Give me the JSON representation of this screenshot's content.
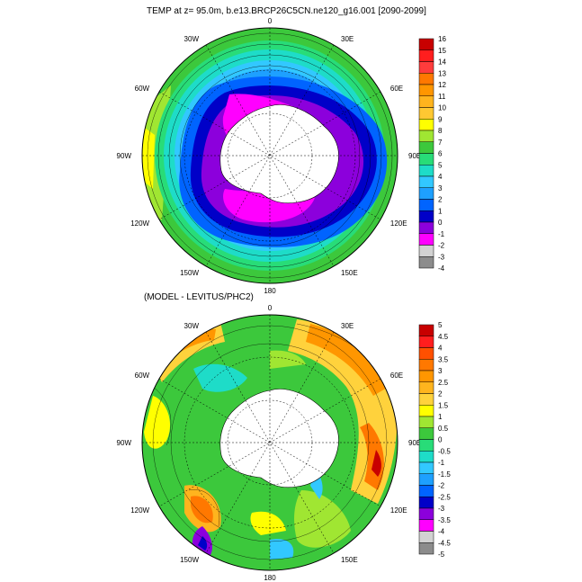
{
  "panels": [
    {
      "title": "TEMP at z=  95.0m, b.e13.BRCP26C5CN.ne120_g16.001 [2090-2099]",
      "lon_labels": [
        "0",
        "30E",
        "60E",
        "90E",
        "120E",
        "150E",
        "180",
        "150W",
        "120W",
        "90W",
        "60W",
        "30W"
      ],
      "colorbar": {
        "labels": [
          "16",
          "15",
          "14",
          "13",
          "12",
          "11",
          "10",
          "9",
          "8",
          "7",
          "6",
          "5",
          "4",
          "3",
          "2",
          "1",
          "0",
          "-1",
          "-2",
          "-3",
          "-4"
        ],
        "colors": [
          "#c80000",
          "#ff1e1e",
          "#ff3c3c",
          "#ff7800",
          "#ff9600",
          "#ffb41e",
          "#ffc832",
          "#ffff00",
          "#a0e632",
          "#3cc83c",
          "#28dc78",
          "#1edcc8",
          "#32c8ff",
          "#1ea0ff",
          "#0064ff",
          "#0000c8",
          "#8c00dc",
          "#ff00ff",
          "#d2d2d2",
          "#8c8c8c"
        ]
      }
    },
    {
      "title": "(MODEL - LEVITUS/PHC2)",
      "lon_labels": [
        "0",
        "30E",
        "60E",
        "90E",
        "120E",
        "150E",
        "180",
        "150W",
        "120W",
        "90W",
        "60W",
        "30W"
      ],
      "colorbar": {
        "labels": [
          "5",
          "4.5",
          "4",
          "3.5",
          "3",
          "2.5",
          "2",
          "1.5",
          "1",
          "0.5",
          "0",
          "-0.5",
          "-1",
          "-1.5",
          "-2",
          "-2.5",
          "-3",
          "-3.5",
          "-4",
          "-4.5",
          "-5"
        ],
        "colors": [
          "#c80000",
          "#ff1e1e",
          "#ff5000",
          "#ff7800",
          "#ff9600",
          "#ffb41e",
          "#ffd23c",
          "#ffff00",
          "#a0e632",
          "#3cc83c",
          "#28dc78",
          "#1edcc8",
          "#32c8ff",
          "#1ea0ff",
          "#0064ff",
          "#0000c8",
          "#8c00dc",
          "#ff00ff",
          "#d2d2d2",
          "#8c8c8c"
        ]
      }
    }
  ]
}
